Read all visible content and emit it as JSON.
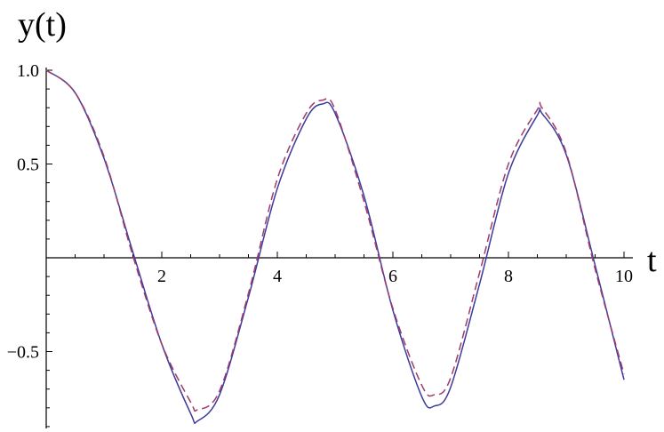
{
  "chart_data": {
    "type": "line",
    "title": "",
    "xlabel": "t",
    "ylabel": "y(t)",
    "xlim": [
      0,
      10
    ],
    "ylim": [
      -0.92,
      1.0
    ],
    "x_ticks": [
      2,
      4,
      6,
      8,
      10
    ],
    "y_ticks": [
      1.0,
      0.5,
      -0.5
    ],
    "y_tick_labels": [
      "1.0",
      "0.5",
      "−0.5"
    ],
    "grid": false,
    "legend": "none",
    "series": [
      {
        "style": "solid",
        "color": "#3b3b9e",
        "x": [
          0.0,
          0.5,
          1.0,
          1.5,
          2.0,
          2.5,
          2.62,
          3.0,
          3.5,
          4.0,
          4.5,
          4.78,
          5.0,
          5.5,
          6.0,
          6.5,
          6.72,
          7.0,
          7.5,
          8.0,
          8.5,
          8.58,
          9.0,
          9.5,
          10.0
        ],
        "values": [
          1.0,
          0.88,
          0.53,
          0.03,
          -0.46,
          -0.83,
          -0.87,
          -0.73,
          -0.21,
          0.37,
          0.74,
          0.82,
          0.77,
          0.33,
          -0.28,
          -0.74,
          -0.79,
          -0.69,
          -0.14,
          0.45,
          0.76,
          0.77,
          0.55,
          -0.04,
          -0.65
        ]
      },
      {
        "style": "dashed",
        "color": "#9e3b6b",
        "x": [
          0.0,
          0.5,
          1.0,
          1.5,
          2.0,
          2.5,
          2.62,
          3.0,
          3.5,
          4.0,
          4.5,
          4.78,
          5.0,
          5.5,
          6.0,
          6.5,
          6.72,
          7.0,
          7.5,
          8.0,
          8.5,
          8.58,
          9.0,
          9.5,
          10.0
        ],
        "values": [
          1.0,
          0.88,
          0.54,
          0.01,
          -0.46,
          -0.77,
          -0.81,
          -0.71,
          -0.19,
          0.42,
          0.77,
          0.84,
          0.79,
          0.3,
          -0.27,
          -0.68,
          -0.73,
          -0.64,
          -0.08,
          0.5,
          0.79,
          0.8,
          0.56,
          -0.06,
          -0.62
        ]
      }
    ]
  }
}
